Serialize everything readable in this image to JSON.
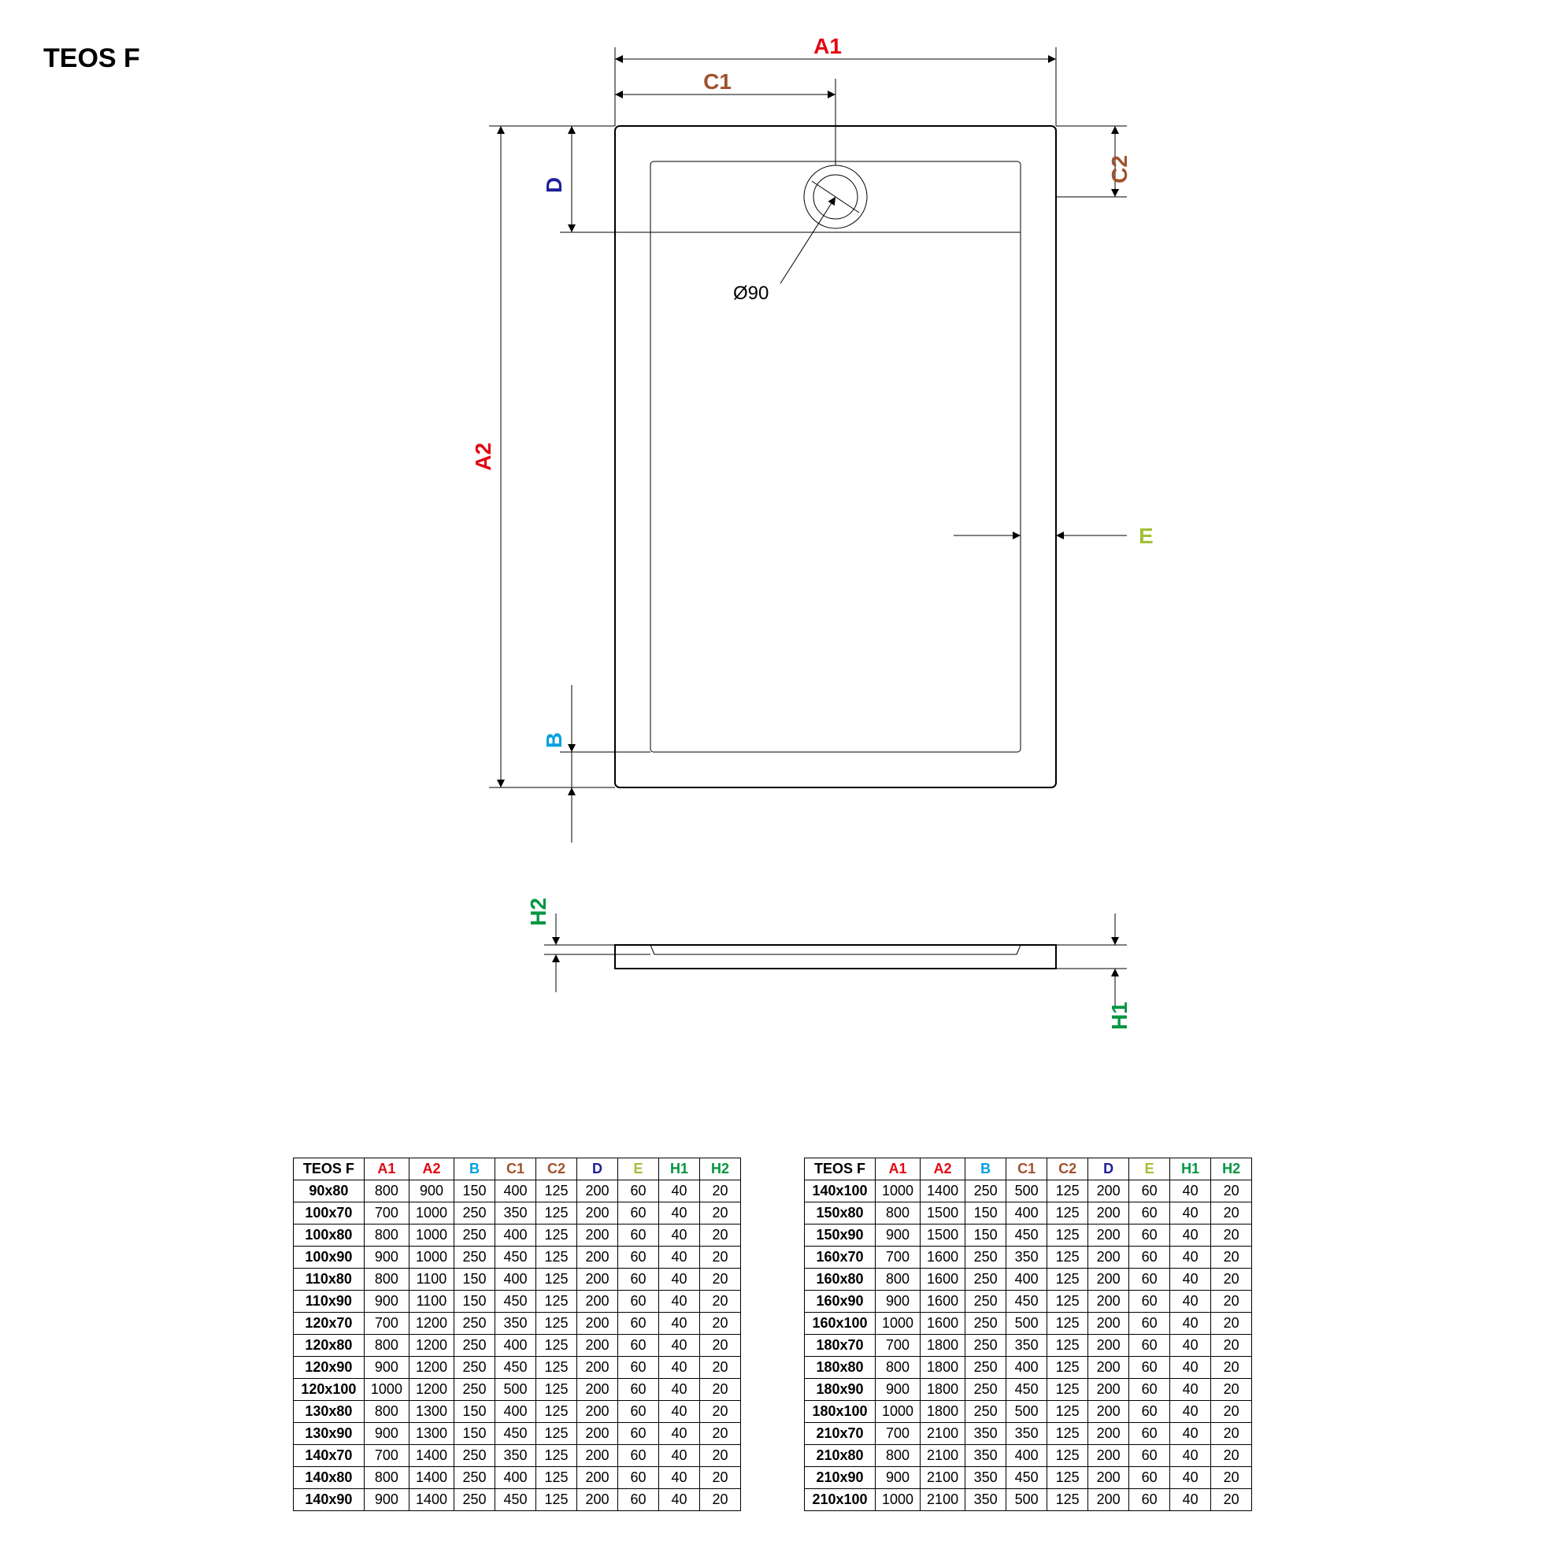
{
  "title": "TEOS F",
  "labels": {
    "A1": "A1",
    "A2": "A2",
    "B": "B",
    "C1": "C1",
    "C2": "C2",
    "D": "D",
    "E": "E",
    "H1": "H1",
    "H2": "H2",
    "dia": "Ø90"
  },
  "colors": {
    "A": "#e30613",
    "B": "#009fe3",
    "C": "#a0522d",
    "D": "#1d1d9b",
    "E": "#a2c037",
    "H": "#009640",
    "black": "#000000"
  },
  "table": {
    "headers": [
      "TEOS F",
      "A1",
      "A2",
      "B",
      "C1",
      "C2",
      "D",
      "E",
      "H1",
      "H2"
    ],
    "header_colors": [
      "#000000",
      "#e30613",
      "#e30613",
      "#009fe3",
      "#a0522d",
      "#a0522d",
      "#1d1d9b",
      "#a2c037",
      "#009640",
      "#009640"
    ],
    "left_rows": [
      [
        "90x80",
        800,
        900,
        150,
        400,
        125,
        200,
        60,
        40,
        20
      ],
      [
        "100x70",
        700,
        1000,
        250,
        350,
        125,
        200,
        60,
        40,
        20
      ],
      [
        "100x80",
        800,
        1000,
        250,
        400,
        125,
        200,
        60,
        40,
        20
      ],
      [
        "100x90",
        900,
        1000,
        250,
        450,
        125,
        200,
        60,
        40,
        20
      ],
      [
        "110x80",
        800,
        1100,
        150,
        400,
        125,
        200,
        60,
        40,
        20
      ],
      [
        "110x90",
        900,
        1100,
        150,
        450,
        125,
        200,
        60,
        40,
        20
      ],
      [
        "120x70",
        700,
        1200,
        250,
        350,
        125,
        200,
        60,
        40,
        20
      ],
      [
        "120x80",
        800,
        1200,
        250,
        400,
        125,
        200,
        60,
        40,
        20
      ],
      [
        "120x90",
        900,
        1200,
        250,
        450,
        125,
        200,
        60,
        40,
        20
      ],
      [
        "120x100",
        1000,
        1200,
        250,
        500,
        125,
        200,
        60,
        40,
        20
      ],
      [
        "130x80",
        800,
        1300,
        150,
        400,
        125,
        200,
        60,
        40,
        20
      ],
      [
        "130x90",
        900,
        1300,
        150,
        450,
        125,
        200,
        60,
        40,
        20
      ],
      [
        "140x70",
        700,
        1400,
        250,
        350,
        125,
        200,
        60,
        40,
        20
      ],
      [
        "140x80",
        800,
        1400,
        250,
        400,
        125,
        200,
        60,
        40,
        20
      ],
      [
        "140x90",
        900,
        1400,
        250,
        450,
        125,
        200,
        60,
        40,
        20
      ]
    ],
    "right_rows": [
      [
        "140x100",
        1000,
        1400,
        250,
        500,
        125,
        200,
        60,
        40,
        20
      ],
      [
        "150x80",
        800,
        1500,
        150,
        400,
        125,
        200,
        60,
        40,
        20
      ],
      [
        "150x90",
        900,
        1500,
        150,
        450,
        125,
        200,
        60,
        40,
        20
      ],
      [
        "160x70",
        700,
        1600,
        250,
        350,
        125,
        200,
        60,
        40,
        20
      ],
      [
        "160x80",
        800,
        1600,
        250,
        400,
        125,
        200,
        60,
        40,
        20
      ],
      [
        "160x90",
        900,
        1600,
        250,
        450,
        125,
        200,
        60,
        40,
        20
      ],
      [
        "160x100",
        1000,
        1600,
        250,
        500,
        125,
        200,
        60,
        40,
        20
      ],
      [
        "180x70",
        700,
        1800,
        250,
        350,
        125,
        200,
        60,
        40,
        20
      ],
      [
        "180x80",
        800,
        1800,
        250,
        400,
        125,
        200,
        60,
        40,
        20
      ],
      [
        "180x90",
        900,
        1800,
        250,
        450,
        125,
        200,
        60,
        40,
        20
      ],
      [
        "180x100",
        1000,
        1800,
        250,
        500,
        125,
        200,
        60,
        40,
        20
      ],
      [
        "210x70",
        700,
        2100,
        350,
        350,
        125,
        200,
        60,
        40,
        20
      ],
      [
        "210x80",
        800,
        2100,
        350,
        400,
        125,
        200,
        60,
        40,
        20
      ],
      [
        "210x90",
        900,
        2100,
        350,
        450,
        125,
        200,
        60,
        40,
        20
      ],
      [
        "210x100",
        1000,
        2100,
        350,
        500,
        125,
        200,
        60,
        40,
        20
      ]
    ]
  },
  "drawing": {
    "title_fontsize": 34,
    "label_fontsize": 28,
    "dia_fontsize": 24,
    "line_width_outline": 2,
    "line_width_thin": 1,
    "background": "#ffffff"
  }
}
